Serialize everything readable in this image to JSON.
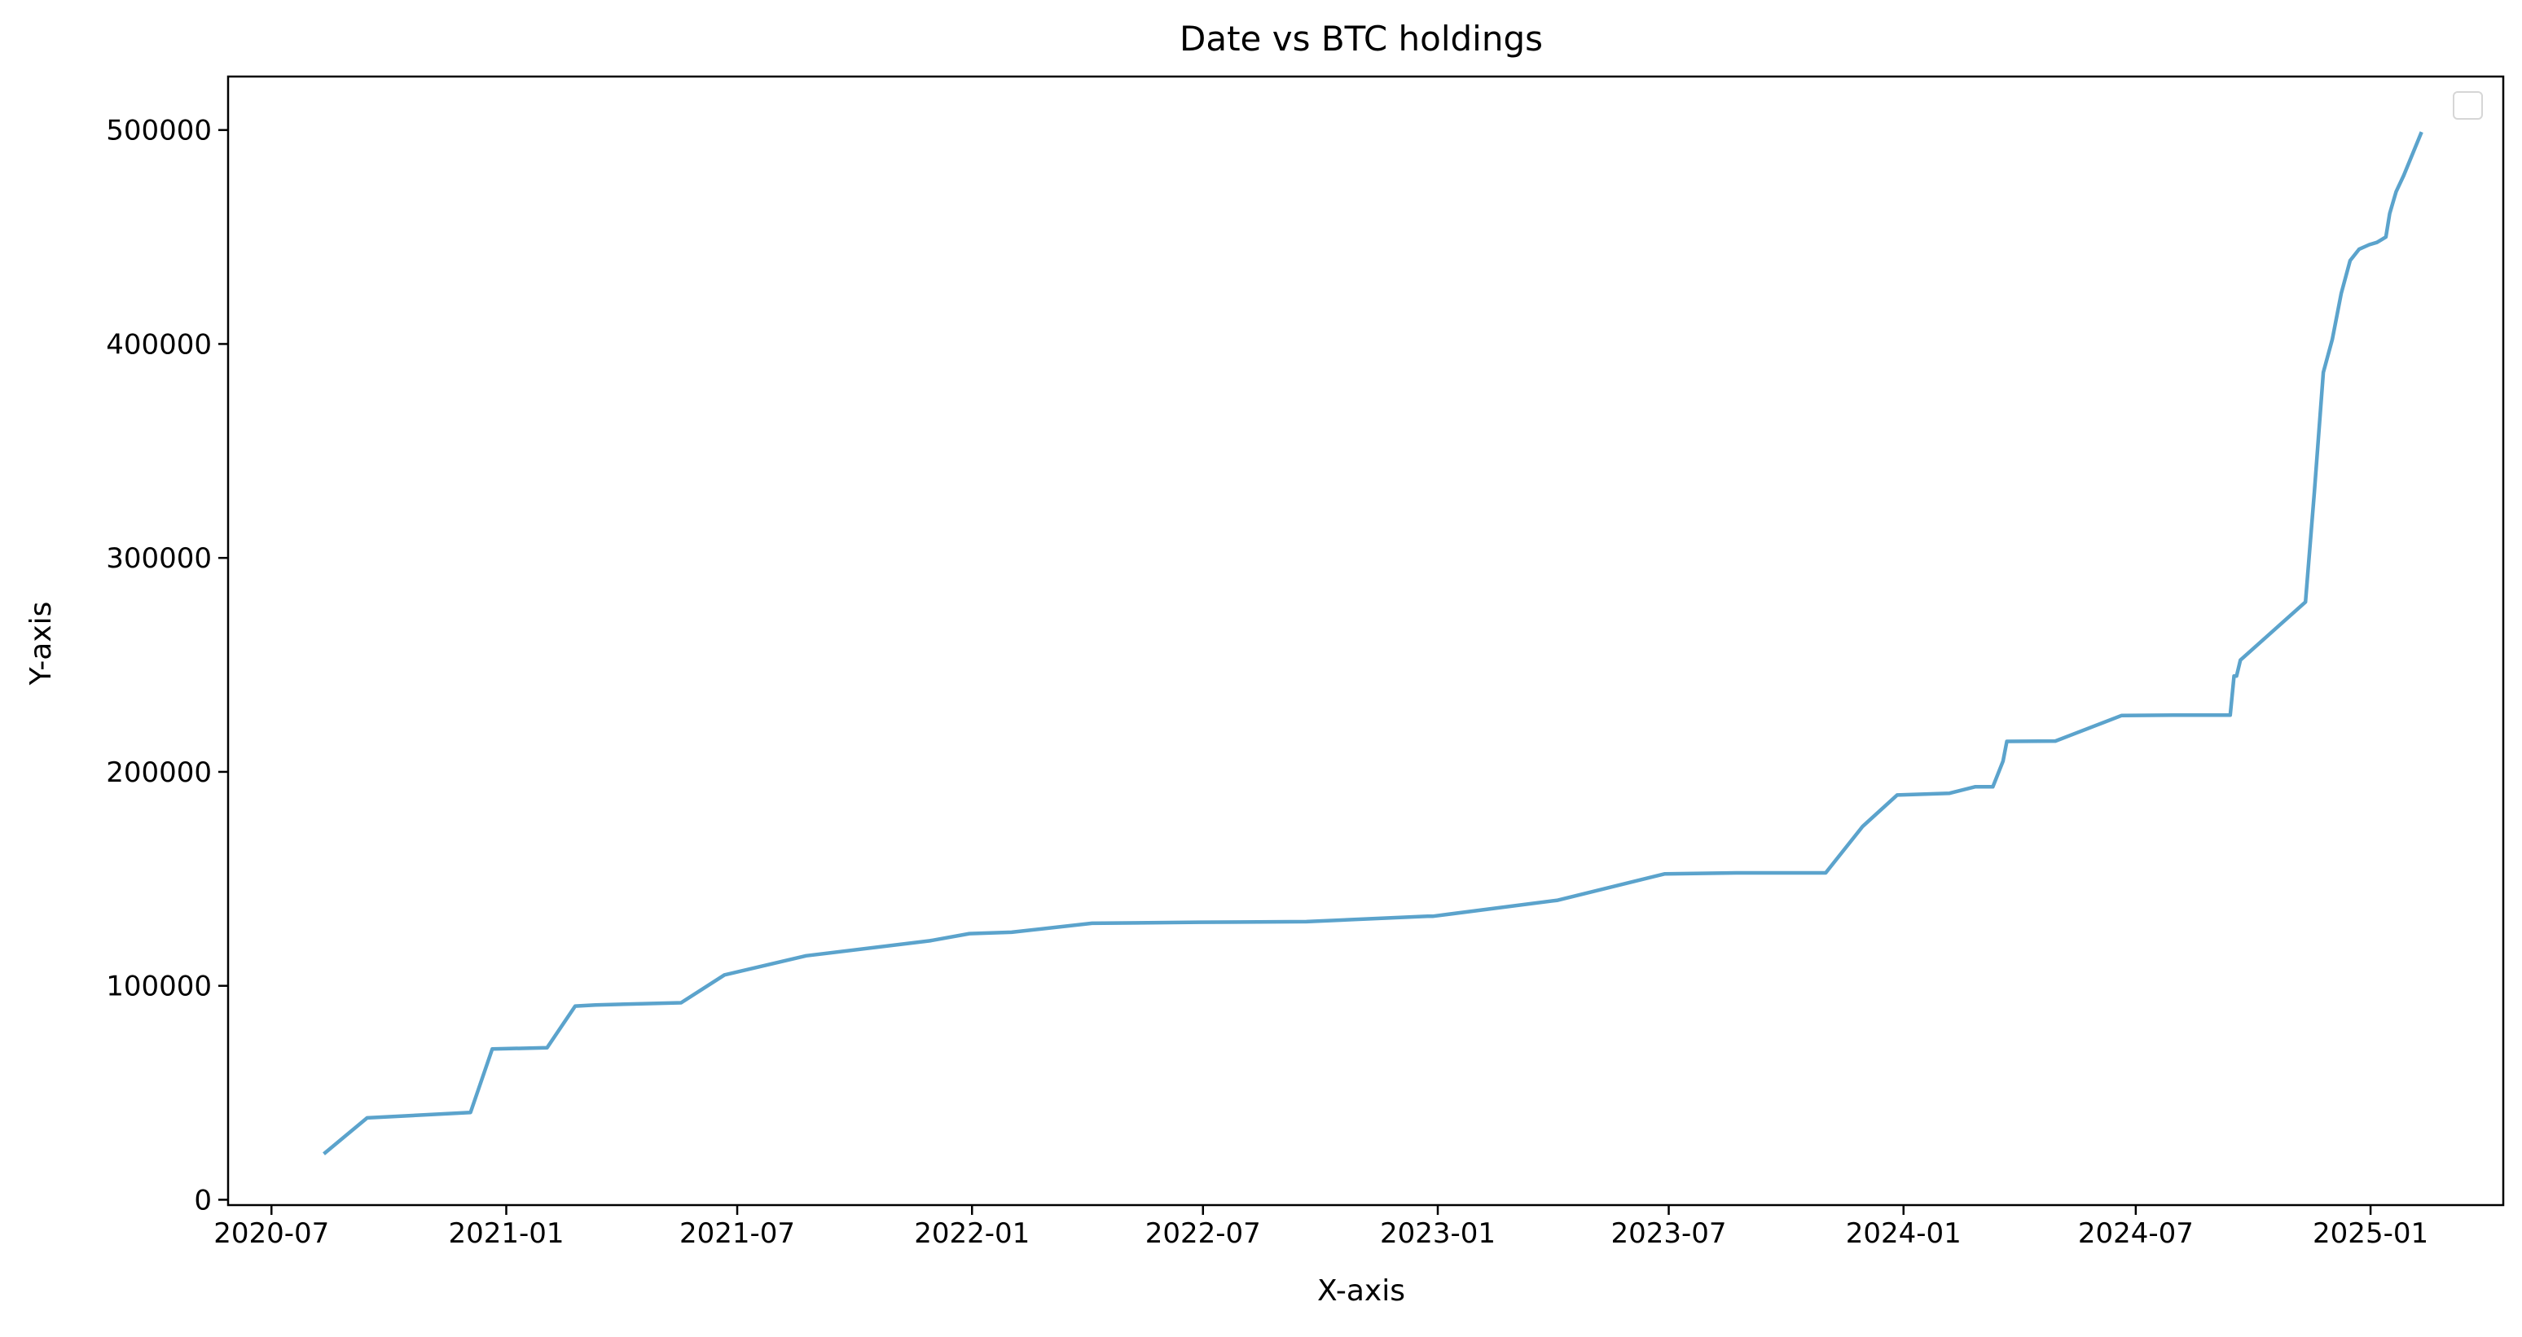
{
  "chart_data": {
    "type": "line",
    "title": "Date vs BTC holdings",
    "xlabel": "X-axis",
    "ylabel": "Y-axis",
    "x_tick_labels": [
      "2020-07",
      "2021-01",
      "2021-07",
      "2022-01",
      "2022-07",
      "2023-01",
      "2023-07",
      "2024-01",
      "2024-07",
      "2025-01"
    ],
    "x_ticks": [
      "2020-07-01",
      "2021-01-01",
      "2021-07-01",
      "2022-01-01",
      "2022-07-01",
      "2023-01-01",
      "2023-07-01",
      "2024-01-01",
      "2024-07-01",
      "2025-01-01"
    ],
    "y_ticks": [
      0,
      100000,
      200000,
      300000,
      400000,
      500000
    ],
    "y_tick_labels": [
      "0",
      "100000",
      "200000",
      "300000",
      "400000",
      "500000"
    ],
    "xlim": [
      "2020-05-28",
      "2025-04-15"
    ],
    "ylim": [
      -2500,
      525000
    ],
    "grid": false,
    "legend": {
      "placement": "top-right",
      "entries": []
    },
    "line_color": "#5ba3cc",
    "series": [
      {
        "x": [
          "2020-08-11",
          "2020-09-14",
          "2020-12-04",
          "2020-12-21",
          "2021-02-02",
          "2021-02-24",
          "2021-03-12",
          "2021-05-18",
          "2021-06-21",
          "2021-08-24",
          "2021-11-29",
          "2021-12-30",
          "2022-02-01",
          "2022-04-05",
          "2022-06-28",
          "2022-09-20",
          "2022-12-24",
          "2022-12-28",
          "2023-04-05",
          "2023-06-28",
          "2023-08-23",
          "2023-09-24",
          "2023-11-01",
          "2023-11-30",
          "2023-12-27",
          "2024-02-06",
          "2024-02-26",
          "2024-03-11",
          "2024-03-19",
          "2024-03-22",
          "2024-04-29",
          "2024-06-20",
          "2024-07-31",
          "2024-09-13",
          "2024-09-16",
          "2024-09-18",
          "2024-09-21",
          "2024-11-11",
          "2024-11-18",
          "2024-11-25",
          "2024-12-02",
          "2024-12-09",
          "2024-12-16",
          "2024-12-23",
          "2024-12-31",
          "2025-01-06",
          "2025-01-13",
          "2025-01-16",
          "2025-01-21",
          "2025-01-27",
          "2025-02-10"
        ],
        "y": [
          21454,
          38250,
          40824,
          70470,
          71079,
          90531,
          91064,
          92079,
          105085,
          114042,
          121044,
          124391,
          125051,
          129218,
          129699,
          130000,
          132500,
          132500,
          140000,
          152333,
          152800,
          152800,
          152800,
          174530,
          189150,
          190000,
          193000,
          193000,
          205000,
          214246,
          214400,
          226331,
          226500,
          226500,
          244800,
          244800,
          252220,
          279420,
          331200,
          386700,
          402100,
          423650,
          439000,
          444262,
          446400,
          447470,
          450000,
          461000,
          471107,
          478740,
          499096
        ]
      }
    ]
  }
}
